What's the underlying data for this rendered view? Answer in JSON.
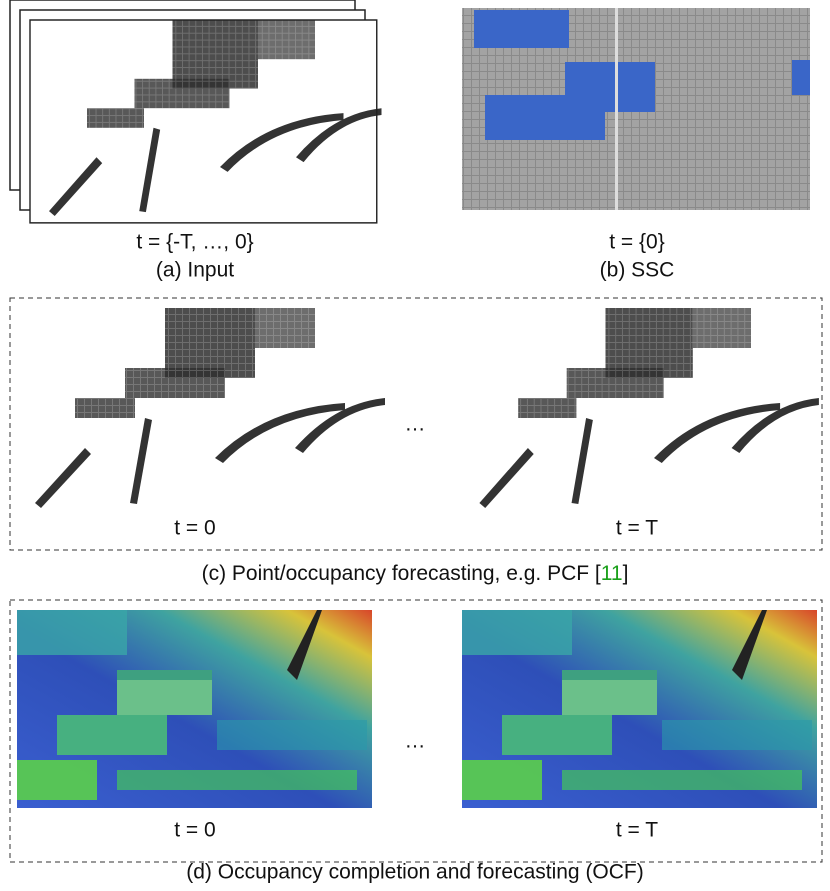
{
  "input_panel": {
    "time": "t = {-T, …, 0}",
    "caption": "(a) Input"
  },
  "ssc_panel": {
    "time": "t = {0}",
    "caption": "(b) SSC"
  },
  "forecasting_panel": {
    "frames": [
      "t = 0",
      "t = T"
    ],
    "ellipsis": "…",
    "caption": "(c) Point/occupancy forecasting, e.g. PCF [",
    "citation": "11",
    "caption_end": "]"
  },
  "ocf_panel": {
    "frames": [
      "t = 0",
      "t = T"
    ],
    "ellipsis": "…",
    "caption": "(d) Occupancy completion and forecasting (OCF)"
  }
}
